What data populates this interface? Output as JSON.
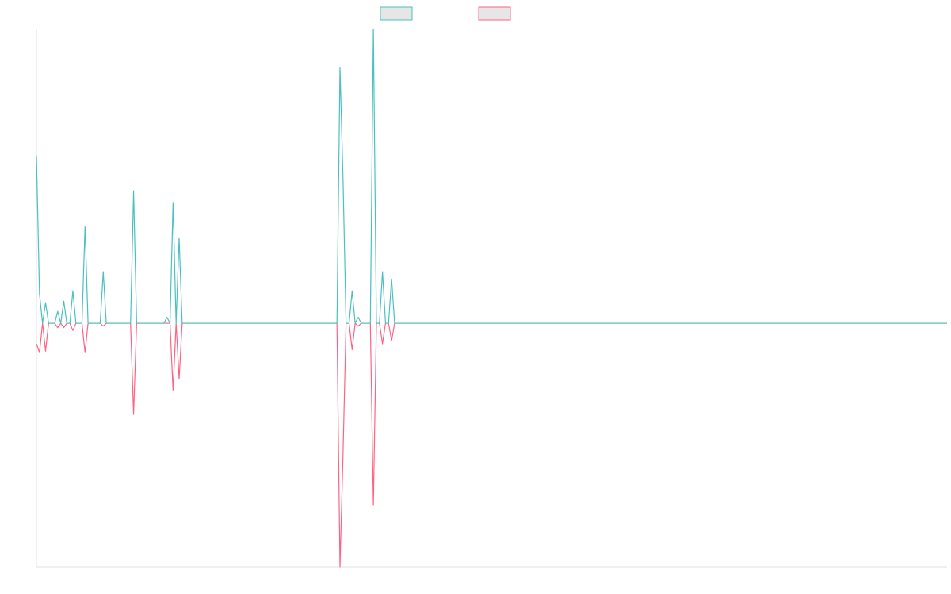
{
  "chart_data": {
    "type": "line",
    "x": [
      0,
      1,
      2,
      3,
      4,
      6,
      7,
      8,
      9,
      10,
      11,
      12,
      13,
      15,
      16,
      17,
      21,
      22,
      23,
      31,
      32,
      33,
      42,
      43,
      44,
      45,
      46,
      47,
      48,
      99,
      100,
      101,
      102,
      103,
      104,
      105,
      106,
      107,
      110,
      111,
      112,
      113,
      114,
      115,
      116,
      117,
      118,
      300
    ],
    "series": [
      {
        "color": "#ff6384",
        "values": [
          -0.07,
          -0.1,
          0,
          -0.095,
          0,
          0,
          -0.015,
          0,
          -0.015,
          0,
          0,
          -0.025,
          0,
          0,
          -0.1,
          0,
          0,
          -0.01,
          0,
          0,
          -0.31,
          0,
          0,
          0,
          0,
          -0.23,
          0,
          -0.19,
          0,
          0,
          -0.83,
          -0.445,
          0,
          0,
          -0.09,
          0,
          -0.01,
          0,
          0,
          -0.62,
          0,
          0,
          -0.07,
          0,
          0,
          -0.06,
          0,
          0
        ]
      },
      {
        "color": "#4bc0c0",
        "values": [
          0.57,
          0.1,
          0,
          0.07,
          0,
          0,
          0.04,
          0,
          0.075,
          0,
          0,
          0.11,
          0,
          0,
          0.33,
          0,
          0,
          0.175,
          0,
          0,
          0.45,
          0,
          0,
          0.02,
          0,
          0.41,
          0,
          0.29,
          0,
          0,
          0.87,
          0.49,
          0,
          0,
          0.11,
          0,
          0.02,
          0,
          0,
          1,
          0,
          0,
          0.175,
          0,
          0,
          0.15,
          0,
          0
        ]
      }
    ],
    "xlim": [
      0,
      300
    ],
    "ylim": [
      -0.83,
      1
    ]
  }
}
